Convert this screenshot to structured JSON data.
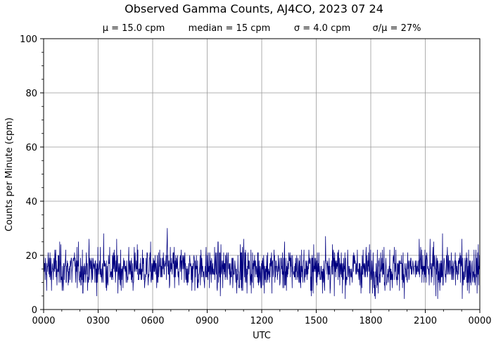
{
  "chart_data": {
    "type": "line",
    "title": "Observed Gamma Counts, AJ4CO, 2023 07 24",
    "subtitle_items": [
      "μ = 15.0 cpm",
      "median = 15 cpm",
      "σ = 4.0 cpm",
      "σ/μ = 27%"
    ],
    "xlabel": "UTC",
    "ylabel": "Counts per Minute (cpm)",
    "x_unit": "minutes",
    "xlim": [
      0,
      1440
    ],
    "ylim": [
      0,
      100
    ],
    "x_ticks": [
      {
        "value": 0,
        "label": "0000"
      },
      {
        "value": 180,
        "label": "0300"
      },
      {
        "value": 360,
        "label": "0600"
      },
      {
        "value": 540,
        "label": "0900"
      },
      {
        "value": 720,
        "label": "1200"
      },
      {
        "value": 900,
        "label": "1500"
      },
      {
        "value": 1080,
        "label": "1800"
      },
      {
        "value": 1260,
        "label": "2100"
      },
      {
        "value": 1440,
        "label": "0000"
      }
    ],
    "y_ticks": [
      0,
      20,
      40,
      60,
      80,
      100
    ],
    "grid": true,
    "series": [
      {
        "color": "#000080",
        "mean": 15.0,
        "median": 15,
        "std": 4.0,
        "min": 4,
        "max": 30,
        "n_points": 1440,
        "notable_peaks": [
          {
            "x": 198,
            "y": 28
          },
          {
            "x": 408,
            "y": 30
          },
          {
            "x": 660,
            "y": 26
          },
          {
            "x": 930,
            "y": 27
          },
          {
            "x": 1380,
            "y": 26
          }
        ]
      }
    ]
  }
}
